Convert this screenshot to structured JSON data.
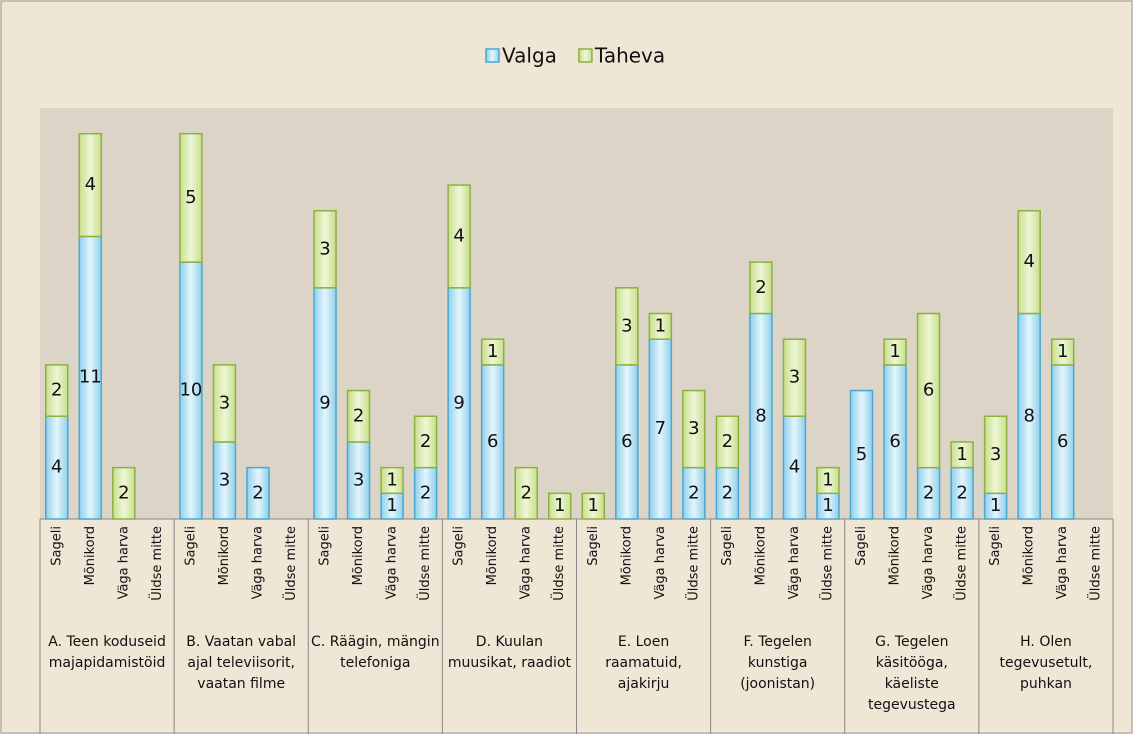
{
  "chart_data": {
    "type": "stacked-bar",
    "categories": [
      "Sageli",
      "Mõnikord",
      "Väga harva",
      "Üldse mitte",
      "Sageli",
      "Mõnikord",
      "Väga harva",
      "Üldse mitte",
      "Sageli",
      "Mõnikord",
      "Väga harva",
      "Üldse mitte",
      "Sageli",
      "Mõnikord",
      "Väga harva",
      "Üldse mitte",
      "Sageli",
      "Mõnikord",
      "Väga harva",
      "Üldse mitte",
      "Sageli",
      "Mõnikord",
      "Väga harva",
      "Üldse mitte",
      "Sageli",
      "Mõnikord",
      "Väga harva",
      "Üldse mitte",
      "Sageli",
      "Mõnikord",
      "Väga harva",
      "Üldse mitte"
    ],
    "groups": [
      "A. Teen koduseid majapidamistöid",
      "B. Vaatan vabal ajal televiisorit, vaatan filme",
      "C. Räägin, mängin telefoniga",
      "D. Kuulan muusikat, raadiot",
      "E. Loen raamatuid, ajakirju",
      "F. Tegelen kunstiga (joonistan)",
      "G. Tegelen käsitööga, käeliste tegevustega",
      "H. Olen tegevusetult, puhkan"
    ],
    "series": [
      {
        "name": "Valga",
        "color": "#4aa8d0",
        "values": [
          4,
          11,
          0,
          0,
          10,
          3,
          2,
          0,
          9,
          3,
          1,
          2,
          9,
          6,
          0,
          0,
          0,
          6,
          7,
          2,
          2,
          8,
          4,
          1,
          5,
          6,
          2,
          2,
          1,
          8,
          6,
          0
        ]
      },
      {
        "name": "Taheva",
        "color": "#8db040",
        "values": [
          2,
          4,
          2,
          0,
          5,
          3,
          0,
          0,
          3,
          2,
          1,
          2,
          4,
          1,
          2,
          1,
          1,
          3,
          1,
          3,
          2,
          2,
          3,
          1,
          0,
          1,
          6,
          1,
          3,
          4,
          1,
          0
        ]
      }
    ],
    "ylim": [
      0,
      16
    ],
    "legend": "top"
  }
}
